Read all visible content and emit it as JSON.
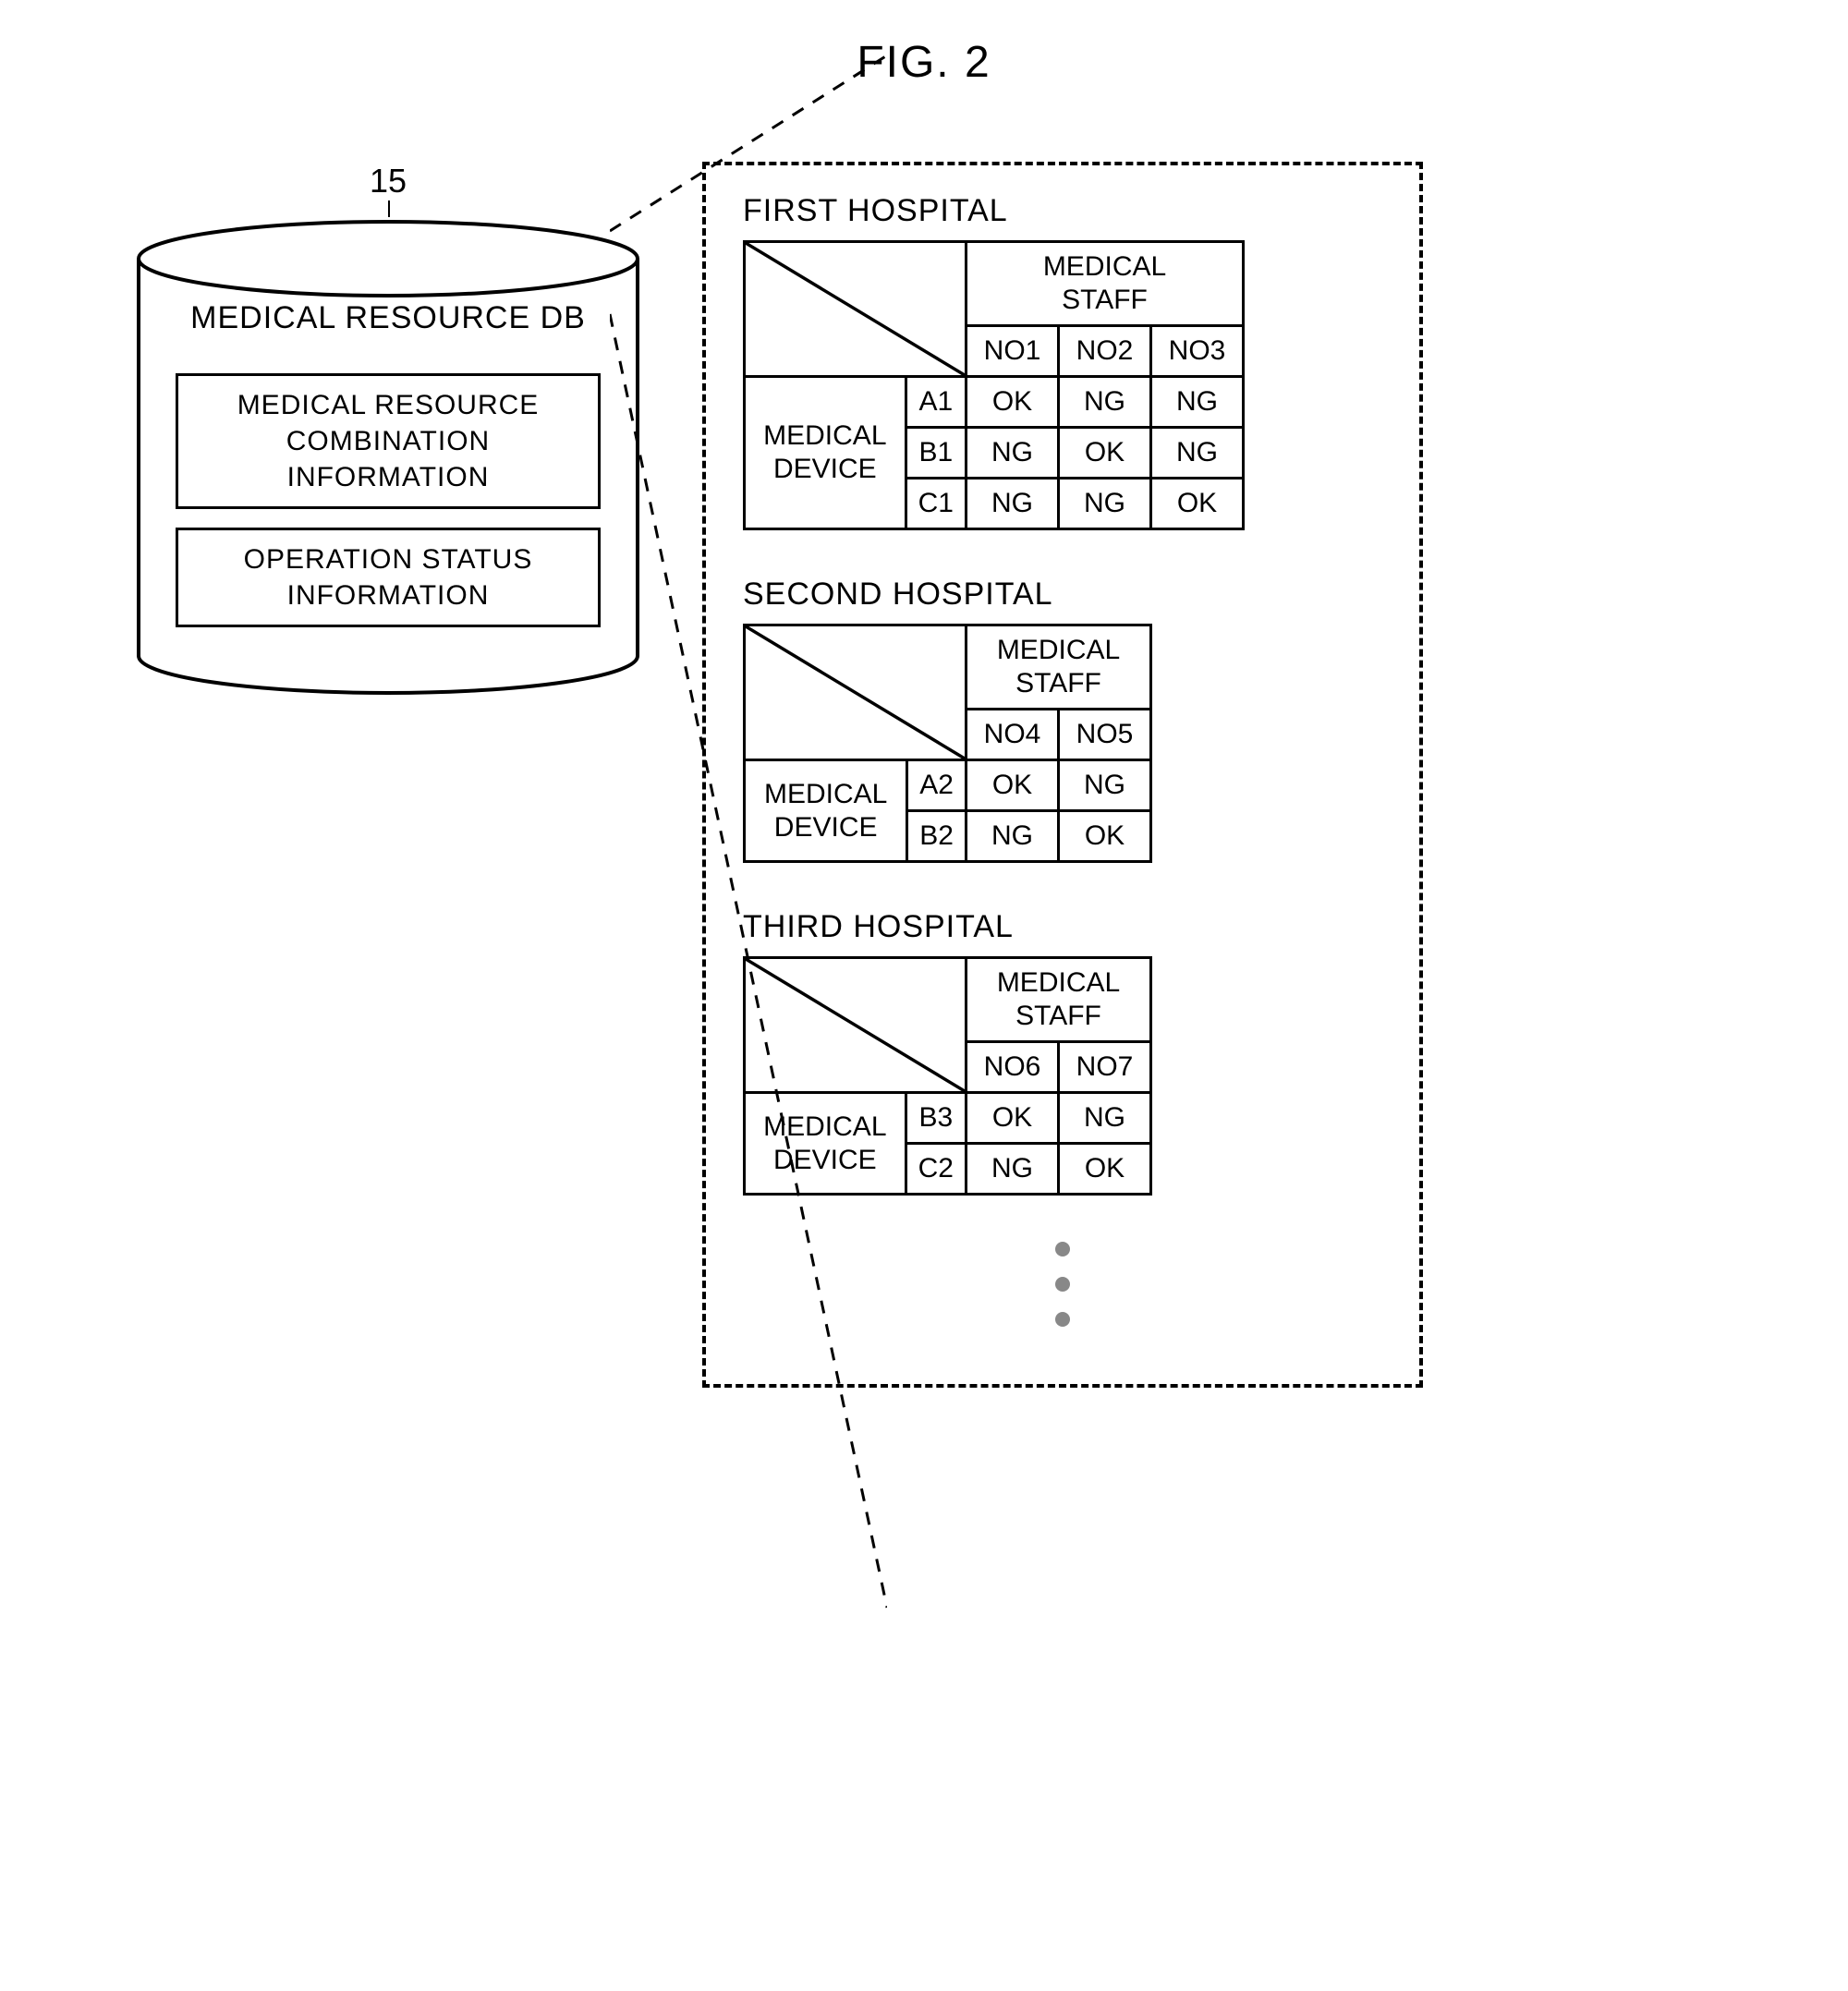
{
  "figure_label": "FIG. 2",
  "db": {
    "ref_number": "15",
    "title": "MEDICAL RESOURCE DB",
    "box1": "MEDICAL RESOURCE COMBINATION INFORMATION",
    "box2": "OPERATION STATUS INFORMATION"
  },
  "hospitals": [
    {
      "title": "FIRST HOSPITAL",
      "staff_header": "MEDICAL STAFF",
      "device_header": "MEDICAL DEVICE",
      "staff_cols": [
        "NO1",
        "NO2",
        "NO3"
      ],
      "device_rows": [
        "A1",
        "B1",
        "C1"
      ],
      "values": [
        [
          "OK",
          "NG",
          "NG"
        ],
        [
          "NG",
          "OK",
          "NG"
        ],
        [
          "NG",
          "NG",
          "OK"
        ]
      ]
    },
    {
      "title": "SECOND HOSPITAL",
      "staff_header": "MEDICAL STAFF",
      "device_header": "MEDICAL DEVICE",
      "staff_cols": [
        "NO4",
        "NO5"
      ],
      "device_rows": [
        "A2",
        "B2"
      ],
      "values": [
        [
          "OK",
          "NG"
        ],
        [
          "NG",
          "OK"
        ]
      ]
    },
    {
      "title": "THIRD HOSPITAL",
      "staff_header": "MEDICAL STAFF",
      "device_header": "MEDICAL DEVICE",
      "staff_cols": [
        "NO6",
        "NO7"
      ],
      "device_rows": [
        "B3",
        "C2"
      ],
      "values": [
        [
          "OK",
          "NG"
        ],
        [
          "NG",
          "OK"
        ]
      ]
    }
  ],
  "styling": {
    "stroke_color": "#000000",
    "stroke_width": 4,
    "dash_pattern": "12 10",
    "font_family": "Arial",
    "background": "#ffffff",
    "dot_color": "#888888"
  }
}
